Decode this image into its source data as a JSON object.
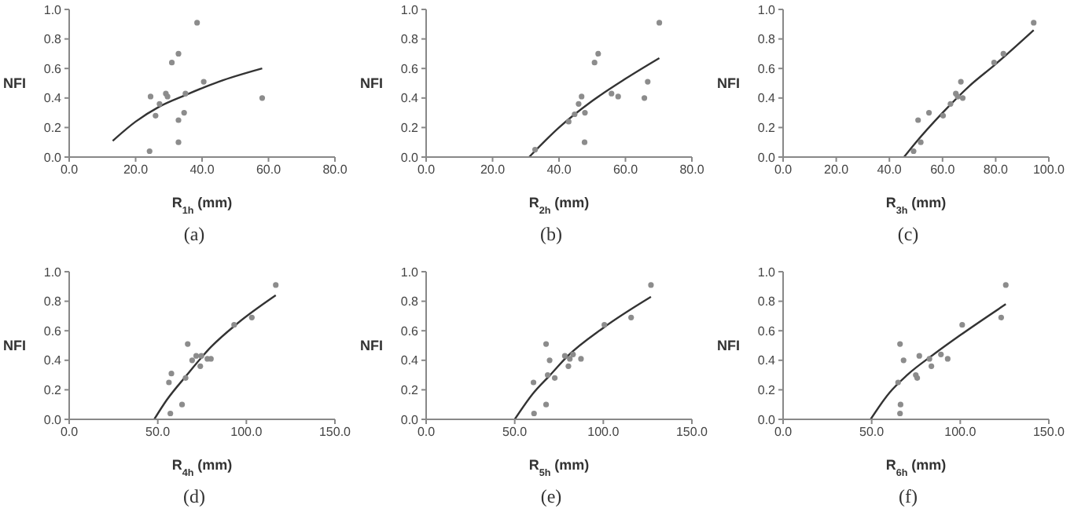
{
  "chart_data": [
    {
      "type": "scatter",
      "xlabel": "R$_{1h}$ (mm)",
      "ylabel": "NFI",
      "annotations": [
        "(a)"
      ],
      "xlim": [
        0,
        80
      ],
      "xticks": [
        {
          "value": 0,
          "label": "0.0"
        },
        {
          "value": 20,
          "label": "20.0"
        },
        {
          "value": 40,
          "label": "40.0"
        },
        {
          "value": 60,
          "label": "60.0"
        },
        {
          "value": 80,
          "label": "80.0"
        }
      ],
      "ylim": [
        0,
        1
      ],
      "yticks": [
        {
          "value": 0,
          "label": "0.0"
        },
        {
          "value": 0.2,
          "label": "0.2"
        },
        {
          "value": 0.4,
          "label": "0.4"
        },
        {
          "value": 0.6,
          "label": "0.6"
        },
        {
          "value": 0.8,
          "label": "0.8"
        },
        {
          "value": 1,
          "label": "1.0"
        }
      ],
      "grid": false,
      "series": [
        {
          "type": "scatter",
          "marker": "circle",
          "color": "#8c8c8c",
          "x": [
            24.5,
            24.2,
            26.0,
            27.2,
            29.1,
            29.6,
            30.9,
            32.9,
            32.9,
            32.9,
            34.6,
            35.0,
            40.5,
            38.5,
            58.1
          ],
          "values": [
            0.41,
            0.04,
            0.28,
            0.36,
            0.43,
            0.41,
            0.64,
            0.7,
            0.25,
            0.1,
            0.3,
            0.43,
            0.51,
            0.91,
            0.4
          ]
        },
        {
          "type": "line",
          "marker": "none",
          "color": "#333333",
          "x": [
            13.1,
            20,
            27,
            35,
            45,
            58.1
          ],
          "values": [
            0.11,
            0.24,
            0.34,
            0.42,
            0.51,
            0.6
          ]
        }
      ]
    },
    {
      "type": "scatter",
      "xlabel": "R$_{2h}$ (mm)",
      "ylabel": "NFI",
      "annotations": [
        "(b)"
      ],
      "xlim": [
        0,
        80
      ],
      "xticks": [
        {
          "value": 0,
          "label": "0.0"
        },
        {
          "value": 20,
          "label": "20.0"
        },
        {
          "value": 40,
          "label": "40.0"
        },
        {
          "value": 60,
          "label": "60.0"
        },
        {
          "value": 80,
          "label": "80.0"
        }
      ],
      "ylim": [
        0,
        1
      ],
      "yticks": [
        {
          "value": 0,
          "label": "0.0"
        },
        {
          "value": 0.2,
          "label": "0.2"
        },
        {
          "value": 0.4,
          "label": "0.4"
        },
        {
          "value": 0.6,
          "label": "0.6"
        },
        {
          "value": 0.8,
          "label": "0.8"
        },
        {
          "value": 1,
          "label": "1.0"
        }
      ],
      "grid": false,
      "series": [
        {
          "type": "scatter",
          "marker": "circle",
          "color": "#8c8c8c",
          "x": [
            32.8,
            42.9,
            44.7,
            45.9,
            46.8,
            47.8,
            47.7,
            50.7,
            51.8,
            55.8,
            57.8,
            65.7,
            66.7,
            70.2
          ],
          "values": [
            0.05,
            0.24,
            0.29,
            0.36,
            0.41,
            0.3,
            0.1,
            0.64,
            0.7,
            0.43,
            0.41,
            0.4,
            0.51,
            0.91
          ]
        },
        {
          "type": "line",
          "marker": "none",
          "color": "#333333",
          "x": [
            31,
            40,
            50,
            60,
            70.2
          ],
          "values": [
            0,
            0.2,
            0.38,
            0.53,
            0.67
          ]
        }
      ]
    },
    {
      "type": "scatter",
      "xlabel": "R$_{3h}$ (mm)",
      "ylabel": "NFI",
      "annotations": [
        "(c)"
      ],
      "xlim": [
        0,
        100
      ],
      "xticks": [
        {
          "value": 0,
          "label": "0.0"
        },
        {
          "value": 20,
          "label": "20.0"
        },
        {
          "value": 40,
          "label": "40.0"
        },
        {
          "value": 60,
          "label": "60.0"
        },
        {
          "value": 80,
          "label": "80.0"
        },
        {
          "value": 100,
          "label": "100.0"
        }
      ],
      "ylim": [
        0,
        1
      ],
      "yticks": [
        {
          "value": 0,
          "label": "0.0"
        },
        {
          "value": 0.2,
          "label": "0.2"
        },
        {
          "value": 0.4,
          "label": "0.4"
        },
        {
          "value": 0.6,
          "label": "0.6"
        },
        {
          "value": 0.8,
          "label": "0.8"
        },
        {
          "value": 1,
          "label": "1.0"
        }
      ],
      "grid": false,
      "series": [
        {
          "type": "scatter",
          "marker": "circle",
          "color": "#8c8c8c",
          "x": [
            49.1,
            50.8,
            51.8,
            54.9,
            60.2,
            63.0,
            65.0,
            65.7,
            66.9,
            67.6,
            79.4,
            82.9,
            94.3
          ],
          "values": [
            0.04,
            0.25,
            0.1,
            0.3,
            0.28,
            0.36,
            0.43,
            0.41,
            0.51,
            0.4,
            0.64,
            0.7,
            0.91
          ]
        },
        {
          "type": "line",
          "marker": "none",
          "color": "#333333",
          "x": [
            45.5,
            50,
            60,
            70,
            80,
            94.3
          ],
          "values": [
            0,
            0.1,
            0.3,
            0.48,
            0.63,
            0.86
          ]
        }
      ]
    },
    {
      "type": "scatter",
      "xlabel": "R$_{4h}$ (mm)",
      "ylabel": "NFI",
      "annotations": [
        "(d)"
      ],
      "xlim": [
        0,
        150
      ],
      "xticks": [
        {
          "value": 0,
          "label": "0.0"
        },
        {
          "value": 50,
          "label": "50.0"
        },
        {
          "value": 100,
          "label": "100.0"
        },
        {
          "value": 150,
          "label": "150.0"
        }
      ],
      "ylim": [
        0,
        1
      ],
      "yticks": [
        {
          "value": 0,
          "label": "0.0"
        },
        {
          "value": 0.2,
          "label": "0.2"
        },
        {
          "value": 0.4,
          "label": "0.4"
        },
        {
          "value": 0.6,
          "label": "0.6"
        },
        {
          "value": 0.8,
          "label": "0.8"
        },
        {
          "value": 1,
          "label": "1.0"
        }
      ],
      "grid": false,
      "series": [
        {
          "type": "scatter",
          "marker": "circle",
          "color": "#8c8c8c",
          "x": [
            57.1,
            56.3,
            57.7,
            63.7,
            65.7,
            66.9,
            69.4,
            71.7,
            74.0,
            74.6,
            78.0,
            80.0,
            93.1,
            103.1,
            116.6
          ],
          "values": [
            0.04,
            0.25,
            0.31,
            0.1,
            0.28,
            0.51,
            0.4,
            0.43,
            0.36,
            0.43,
            0.41,
            0.41,
            0.64,
            0.69,
            0.91
          ]
        },
        {
          "type": "line",
          "marker": "none",
          "color": "#333333",
          "x": [
            48,
            55,
            65.7,
            80,
            95,
            116.6
          ],
          "values": [
            0,
            0.13,
            0.29,
            0.49,
            0.65,
            0.84
          ]
        }
      ]
    },
    {
      "type": "scatter",
      "xlabel": "R$_{5h}$ (mm)",
      "ylabel": "NFI",
      "annotations": [
        "(e)"
      ],
      "xlim": [
        0,
        150
      ],
      "xticks": [
        {
          "value": 0,
          "label": "0.0"
        },
        {
          "value": 50,
          "label": "50.0"
        },
        {
          "value": 100,
          "label": "100.0"
        },
        {
          "value": 150,
          "label": "150.0"
        }
      ],
      "ylim": [
        0,
        1
      ],
      "yticks": [
        {
          "value": 0,
          "label": "0.0"
        },
        {
          "value": 0.2,
          "label": "0.2"
        },
        {
          "value": 0.4,
          "label": "0.4"
        },
        {
          "value": 0.6,
          "label": "0.6"
        },
        {
          "value": 0.8,
          "label": "0.8"
        },
        {
          "value": 1,
          "label": "1.0"
        }
      ],
      "grid": false,
      "series": [
        {
          "type": "scatter",
          "marker": "circle",
          "color": "#8c8c8c",
          "x": [
            60.9,
            60.6,
            67.7,
            67.7,
            68.6,
            69.7,
            72.6,
            78.3,
            80.3,
            81.1,
            82.9,
            87.4,
            100.6,
            115.7,
            126.9
          ],
          "values": [
            0.04,
            0.25,
            0.1,
            0.51,
            0.3,
            0.4,
            0.28,
            0.43,
            0.36,
            0.41,
            0.44,
            0.41,
            0.64,
            0.69,
            0.91
          ]
        },
        {
          "type": "line",
          "marker": "none",
          "color": "#333333",
          "x": [
            50,
            60,
            70,
            80,
            100,
            126.9
          ],
          "values": [
            0,
            0.17,
            0.3,
            0.43,
            0.62,
            0.83
          ]
        }
      ]
    },
    {
      "type": "scatter",
      "xlabel": "R$_{6h}$ (mm)",
      "ylabel": "NFI",
      "annotations": [
        "(f)"
      ],
      "xlim": [
        0,
        150
      ],
      "xticks": [
        {
          "value": 0,
          "label": "0.0"
        },
        {
          "value": 50,
          "label": "50.0"
        },
        {
          "value": 100,
          "label": "100.0"
        },
        {
          "value": 150,
          "label": "150.0"
        }
      ],
      "ylim": [
        0,
        1
      ],
      "yticks": [
        {
          "value": 0,
          "label": "0.0"
        },
        {
          "value": 0.2,
          "label": "0.2"
        },
        {
          "value": 0.4,
          "label": "0.4"
        },
        {
          "value": 0.6,
          "label": "0.6"
        },
        {
          "value": 0.8,
          "label": "0.8"
        },
        {
          "value": 1,
          "label": "1.0"
        }
      ],
      "grid": false,
      "series": [
        {
          "type": "scatter",
          "marker": "circle",
          "color": "#8c8c8c",
          "x": [
            66.0,
            66.3,
            66.0,
            64.9,
            68.0,
            74.9,
            75.7,
            76.9,
            82.6,
            83.7,
            89.1,
            92.9,
            101.1,
            123.1,
            125.7
          ],
          "values": [
            0.04,
            0.1,
            0.51,
            0.25,
            0.4,
            0.3,
            0.28,
            0.43,
            0.41,
            0.36,
            0.44,
            0.41,
            0.64,
            0.69,
            0.91
          ]
        },
        {
          "type": "line",
          "marker": "none",
          "color": "#333333",
          "x": [
            49.4,
            60,
            70,
            85,
            100,
            125.7
          ],
          "values": [
            0,
            0.18,
            0.3,
            0.44,
            0.57,
            0.78
          ]
        }
      ]
    }
  ]
}
